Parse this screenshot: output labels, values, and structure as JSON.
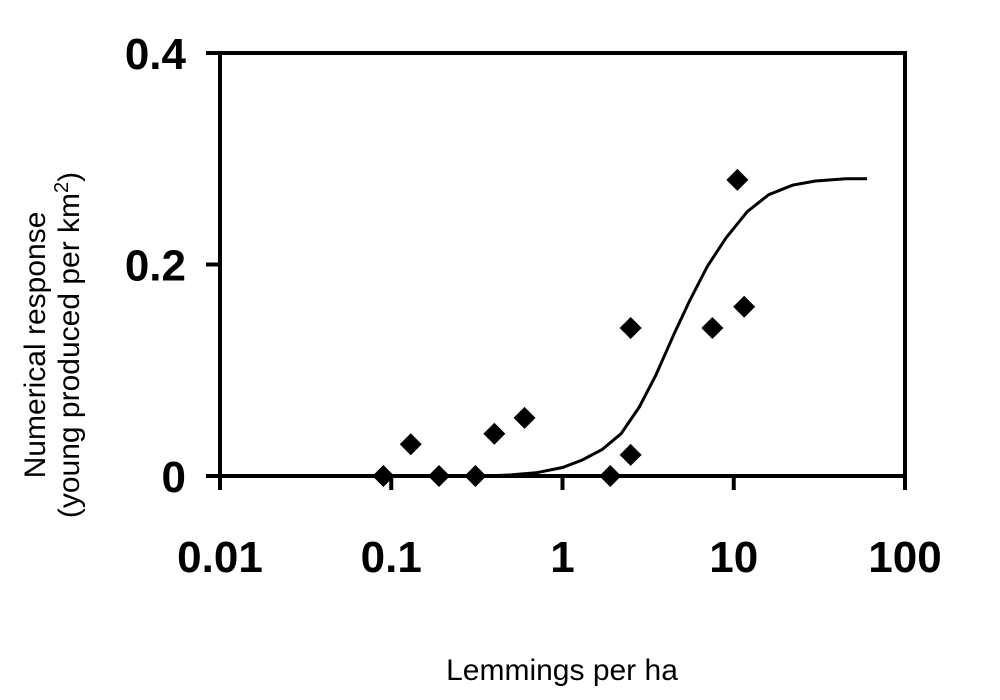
{
  "chart_data": {
    "type": "scatter",
    "title": "",
    "xlabel": "Lemmings per ha",
    "ylabel_line1": "Numerical response",
    "ylabel_line2_prefix": "(young produced per km",
    "ylabel_line2_sup": "2",
    "ylabel_line2_suffix": ")",
    "xscale": "log",
    "xlim": [
      0.01,
      100
    ],
    "ylim": [
      0,
      0.4
    ],
    "grid": false,
    "x_ticks": [
      0.01,
      0.1,
      1,
      10,
      100
    ],
    "x_tick_labels": [
      "0.01",
      "0.1",
      "1",
      "10",
      "100"
    ],
    "y_ticks": [
      0,
      0.2,
      0.4
    ],
    "y_tick_labels": [
      "0",
      "0.2",
      "0.4"
    ],
    "series": [
      {
        "marker": "diamond",
        "points": [
          {
            "x": 0.09,
            "y": 0.0
          },
          {
            "x": 0.13,
            "y": 0.03
          },
          {
            "x": 0.19,
            "y": 0.0
          },
          {
            "x": 0.31,
            "y": 0.0
          },
          {
            "x": 0.4,
            "y": 0.04
          },
          {
            "x": 0.6,
            "y": 0.055
          },
          {
            "x": 1.9,
            "y": 0.0
          },
          {
            "x": 2.5,
            "y": 0.02
          },
          {
            "x": 2.5,
            "y": 0.14
          },
          {
            "x": 7.5,
            "y": 0.14
          },
          {
            "x": 10.5,
            "y": 0.28
          },
          {
            "x": 11.5,
            "y": 0.16
          }
        ]
      },
      {
        "kind": "fitted-curve",
        "points": [
          {
            "x": 0.35,
            "y": 0.0
          },
          {
            "x": 0.5,
            "y": 0.001
          },
          {
            "x": 0.7,
            "y": 0.003
          },
          {
            "x": 1.0,
            "y": 0.008
          },
          {
            "x": 1.3,
            "y": 0.015
          },
          {
            "x": 1.7,
            "y": 0.025
          },
          {
            "x": 2.2,
            "y": 0.04
          },
          {
            "x": 2.8,
            "y": 0.065
          },
          {
            "x": 3.5,
            "y": 0.095
          },
          {
            "x": 4.5,
            "y": 0.135
          },
          {
            "x": 5.5,
            "y": 0.165
          },
          {
            "x": 7.0,
            "y": 0.198
          },
          {
            "x": 9.0,
            "y": 0.225
          },
          {
            "x": 12.0,
            "y": 0.25
          },
          {
            "x": 16.0,
            "y": 0.266
          },
          {
            "x": 22.0,
            "y": 0.275
          },
          {
            "x": 30.0,
            "y": 0.279
          },
          {
            "x": 45.0,
            "y": 0.281
          },
          {
            "x": 60.0,
            "y": 0.281
          }
        ]
      }
    ]
  }
}
